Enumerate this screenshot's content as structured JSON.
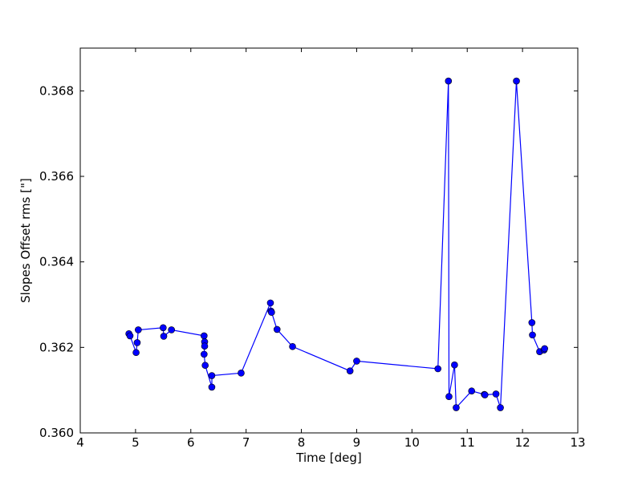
{
  "chart_data": {
    "type": "line",
    "title": "",
    "xlabel": "Time [deg]",
    "ylabel": "Slopes Offset rms [\"]",
    "xlim": [
      4,
      13
    ],
    "ylim": [
      0.36,
      0.369
    ],
    "xticks": [
      4,
      5,
      6,
      7,
      8,
      9,
      10,
      11,
      12,
      13
    ],
    "xtick_labels": [
      "4",
      "5",
      "6",
      "7",
      "8",
      "9",
      "10",
      "11",
      "12",
      "13"
    ],
    "yticks": [
      0.36,
      0.362,
      0.364,
      0.366,
      0.368
    ],
    "ytick_labels": [
      "0.360",
      "0.362",
      "0.364",
      "0.366",
      "0.368"
    ],
    "grid": false,
    "legend": "none",
    "line_color": "#0000ff",
    "marker_color": "#0000ff",
    "marker": "circle",
    "series": [
      {
        "x": [
          4.88,
          4.9,
          5.01,
          5.03,
          5.05,
          5.5,
          5.51,
          5.65,
          6.24,
          6.25,
          6.25,
          6.24,
          6.26,
          6.38,
          6.38,
          6.91,
          7.44,
          7.45,
          7.46,
          7.56,
          7.84,
          8.88,
          9.0,
          10.47,
          10.66,
          10.67,
          10.77,
          10.8,
          11.08,
          11.31,
          11.32,
          11.52,
          11.6,
          11.89,
          12.17,
          12.18,
          12.31,
          12.39,
          12.4
        ],
        "y": [
          0.36232,
          0.36227,
          0.36188,
          0.36211,
          0.36241,
          0.36246,
          0.36226,
          0.36241,
          0.36227,
          0.36213,
          0.36203,
          0.36184,
          0.36158,
          0.36107,
          0.36134,
          0.3614,
          0.36304,
          0.36285,
          0.36282,
          0.36242,
          0.36202,
          0.36145,
          0.36168,
          0.3615,
          0.36823,
          0.36085,
          0.36159,
          0.36059,
          0.36098,
          0.3609,
          0.36089,
          0.36091,
          0.36059,
          0.36823,
          0.36258,
          0.36229,
          0.3619,
          0.36194,
          0.36197
        ]
      }
    ]
  }
}
